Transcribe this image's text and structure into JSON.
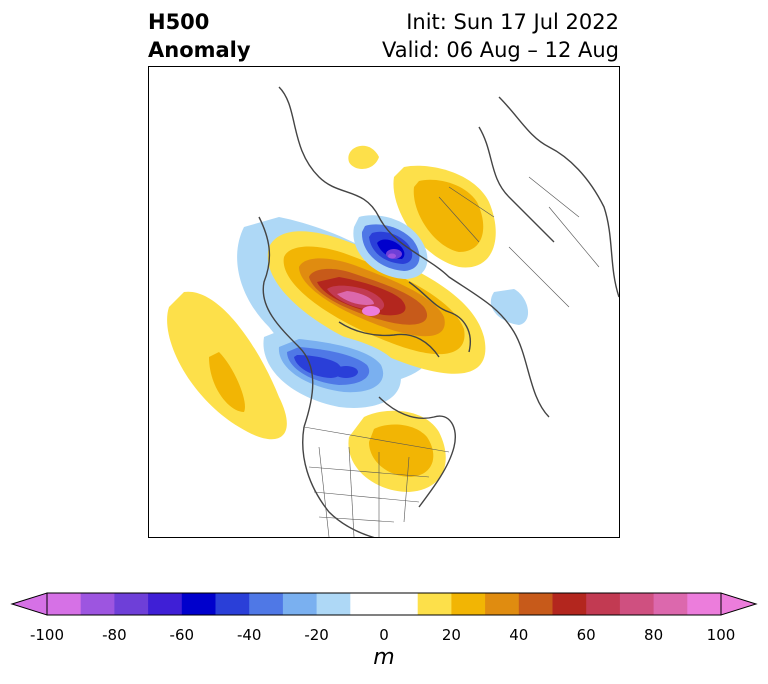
{
  "header": {
    "title_line1": "H500",
    "title_line2": "Anomaly",
    "init_text": "Init: Sun 17 Jul 2022",
    "valid_text": "Valid: 06 Aug – 12 Aug"
  },
  "colorbar": {
    "unit": "m",
    "ticks": [
      "-100",
      "-80",
      "-60",
      "-40",
      "-20",
      "0",
      "20",
      "40",
      "60",
      "80",
      "100"
    ],
    "colors": [
      "#d671e6",
      "#9d55e0",
      "#6e3fd8",
      "#3f1fd6",
      "#0000cc",
      "#2a3fd8",
      "#4f78e6",
      "#7ab0f0",
      "#aed8f6",
      "#ffffff",
      "#ffffff",
      "#fde04a",
      "#f2b504",
      "#e08c10",
      "#c75a1a",
      "#b3261e",
      "#c23a52",
      "#cf5080",
      "#dc68ad",
      "#ec7ddc"
    ]
  }
}
